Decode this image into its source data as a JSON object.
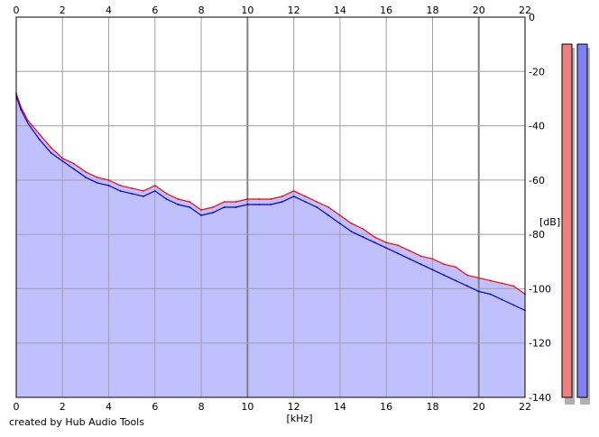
{
  "footer": {
    "credit": "created by Hub Audio Tools"
  },
  "colors": {
    "left_channel": "#ff0000",
    "right_channel": "#0000cc",
    "fill": "#c0c0ff",
    "grid": "#a0a0a0",
    "meter_left": "#f08080",
    "meter_right": "#8080f0"
  },
  "chart_data": {
    "type": "line",
    "title": "",
    "xlabel": "[kHz]",
    "ylabel": "[dB]",
    "xlim": [
      0,
      22
    ],
    "ylim": [
      -140,
      0
    ],
    "x_ticks": [
      "0",
      "2",
      "4",
      "6",
      "8",
      "10",
      "12",
      "14",
      "16",
      "18",
      "20",
      "22"
    ],
    "y_ticks": [
      "0",
      "-20",
      "-40",
      "-60",
      "-80",
      "-100",
      "-120",
      "-140"
    ],
    "grid": true,
    "x": [
      0,
      0.2,
      0.5,
      1,
      1.5,
      2,
      2.5,
      3,
      3.5,
      4,
      4.5,
      5,
      5.5,
      6,
      6.5,
      7,
      7.5,
      8,
      8.5,
      9,
      9.5,
      10,
      10.5,
      11,
      11.5,
      12,
      12.5,
      13,
      13.5,
      14,
      14.5,
      15,
      15.5,
      16,
      16.5,
      17,
      17.5,
      18,
      18.5,
      19,
      19.5,
      20,
      20.5,
      21,
      21.5,
      22
    ],
    "series": [
      {
        "color": "#ff0000",
        "values": [
          -28,
          -33,
          -38,
          -43,
          -48,
          -52,
          -54,
          -57,
          -59,
          -60,
          -62,
          -63,
          -64,
          -62,
          -65,
          -67,
          -68,
          -71,
          -70,
          -68,
          -68,
          -67,
          -67,
          -67,
          -66,
          -64,
          -66,
          -68,
          -70,
          -73,
          -76,
          -78,
          -81,
          -83,
          -84,
          -86,
          -88,
          -89,
          -91,
          -92,
          -95,
          -96,
          -97,
          -98,
          -99,
          -102
        ]
      },
      {
        "color": "#0000cc",
        "values": [
          -29,
          -34,
          -39,
          -45,
          -50,
          -53,
          -56,
          -59,
          -61,
          -62,
          -64,
          -65,
          -66,
          -64,
          -67,
          -69,
          -70,
          -73,
          -72,
          -70,
          -70,
          -69,
          -69,
          -69,
          -68,
          -66,
          -68,
          -70,
          -73,
          -76,
          -79,
          -81,
          -83,
          -85,
          -87,
          -89,
          -91,
          -93,
          -95,
          -97,
          -99,
          -101,
          -102,
          -104,
          -106,
          -108
        ]
      }
    ],
    "level_meters": {
      "left": -140,
      "right": -140
    }
  }
}
